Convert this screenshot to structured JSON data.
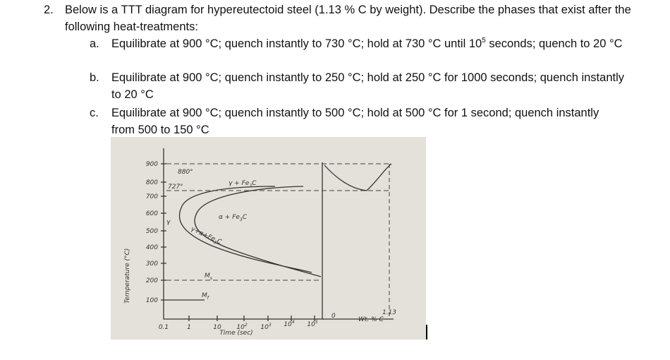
{
  "question": {
    "number": "2.",
    "text": "Below is a TTT diagram for hypereutectoid steel (1.13 % C by weight). Describe the phases that exist after the following heat-treatments:"
  },
  "items": [
    {
      "label": "a.",
      "parts": [
        "Equilibrate at 900 °C; quench instantly to 730 °C; hold at 730 °C until 10",
        "5",
        " seconds; quench to 20 °C"
      ]
    },
    {
      "label": "b.",
      "parts": [
        "Equilibrate at 900 °C; quench instantly to 250 °C; hold at 250 °C for 1000 seconds; quench instantly to 20 °C"
      ]
    },
    {
      "label": "c.",
      "parts": [
        "Equilibrate at 900 °C; quench instantly to 500 °C; hold at 500 °C for 1 second; quench instantly from 500  to 150 °C"
      ]
    }
  ],
  "figure": {
    "y_axis_title": "Temperature (°C)",
    "y_ticks": [
      "900",
      "800",
      "700",
      "600",
      "500",
      "400",
      "300",
      "200",
      "100"
    ],
    "x_ticks": [
      [
        "0.1"
      ],
      [
        "1"
      ],
      [
        "10"
      ],
      [
        "10",
        "2"
      ],
      [
        "10",
        "3"
      ],
      [
        "10",
        "4"
      ],
      [
        "10",
        "5"
      ]
    ],
    "x_axis_title": "Time (sec)",
    "temp_880": "880°",
    "temp_727": "727°",
    "phase_gamma": "γ",
    "phase_gamma_fe3c": [
      "γ + Fe",
      "3",
      "C"
    ],
    "phase_alpha_fe3c": [
      "α + Fe",
      "3",
      "C"
    ],
    "phase_gamma_alpha_fe3c": [
      "γ+α+Fe",
      "3",
      "C"
    ],
    "ms": [
      "M",
      "s"
    ],
    "mf": [
      "M",
      "f"
    ],
    "comp_zero": "0",
    "comp_113": "1.13",
    "comp_axis_title": "Wt. % C"
  }
}
